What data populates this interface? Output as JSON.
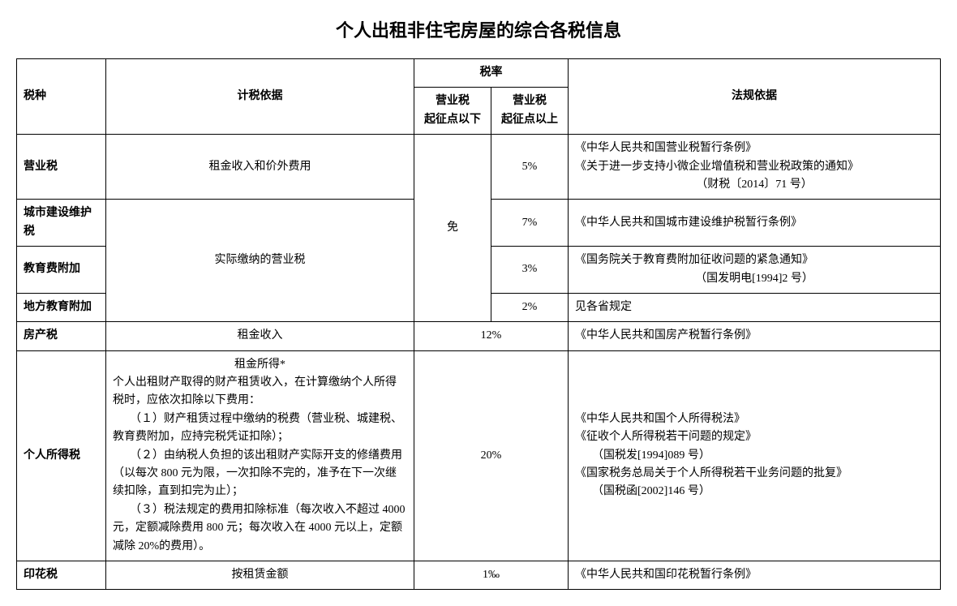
{
  "title": "个人出租非住宅房屋的综合各税信息",
  "headers": {
    "taxType": "税种",
    "basis": "计税依据",
    "rate": "税率",
    "rateBelow": "营业税\n起征点以下",
    "rateAbove": "营业税\n起征点以上",
    "law": "法规依据"
  },
  "rows": {
    "r1": {
      "taxType": "营业税",
      "basis": "租金收入和价外费用",
      "rateBelow": "免",
      "rateAbove": "5%",
      "law1": "《中华人民共和国营业税暂行条例》",
      "law2": "《关于进一步支持小微企业增值税和营业税政策的通知》",
      "law3": "（财税〔2014〕71 号）"
    },
    "r2": {
      "taxType": "城市建设维护税",
      "basis": "实际缴纳的营业税",
      "rateAbove": "7%",
      "law": "《中华人民共和国城市建设维护税暂行条例》"
    },
    "r3": {
      "taxType": "教育费附加",
      "rateAbove": "3%",
      "law1": "《国务院关于教育费附加征收问题的紧急通知》",
      "law2": "（国发明电[1994]2 号）"
    },
    "r4": {
      "taxType": "地方教育附加",
      "rateAbove": "2%",
      "law": "见各省规定"
    },
    "r5": {
      "taxType": "房产税",
      "basis": "租金收入",
      "rate": "12%",
      "law": "《中华人民共和国房产税暂行条例》"
    },
    "r6": {
      "taxType": "个人所得税",
      "basisTitle": "租金所得*",
      "basisLine1": "个人出租财产取得的财产租赁收入，在计算缴纳个人所得税时，应依次扣除以下费用：",
      "basisLine2": "　　（１）财产租赁过程中缴纳的税费（营业税、城建税、教育费附加，应持完税凭证扣除）；",
      "basisLine3": "　　（２）由纳税人负担的该出租财产实际开支的修缮费用（以每次 800 元为限，一次扣除不完的，准予在下一次继续扣除，直到扣完为止）；",
      "basisLine4": "　　（３）税法规定的费用扣除标准（每次收入不超过 4000元，定额减除费用 800 元；每次收入在 4000 元以上，定额减除 20%的费用）。",
      "rate": "20%",
      "law1": "《中华人民共和国个人所得税法》",
      "law2": "《征收个人所得税若干问题的规定》",
      "law3": "　　（国税发[1994]089 号）",
      "law4": "《国家税务总局关于个人所得税若干业务问题的批复》",
      "law5": "　　（国税函[2002]146 号）"
    },
    "r7": {
      "taxType": "印花税",
      "basis": "按租赁金额",
      "rate": "1‰",
      "law": "《中华人民共和国印花税暂行条例》"
    }
  },
  "style": {
    "textColor": "#000000",
    "borderColor": "#000000",
    "background": "#ffffff",
    "titleFontSize": 22,
    "bodyFontSize": 14
  }
}
